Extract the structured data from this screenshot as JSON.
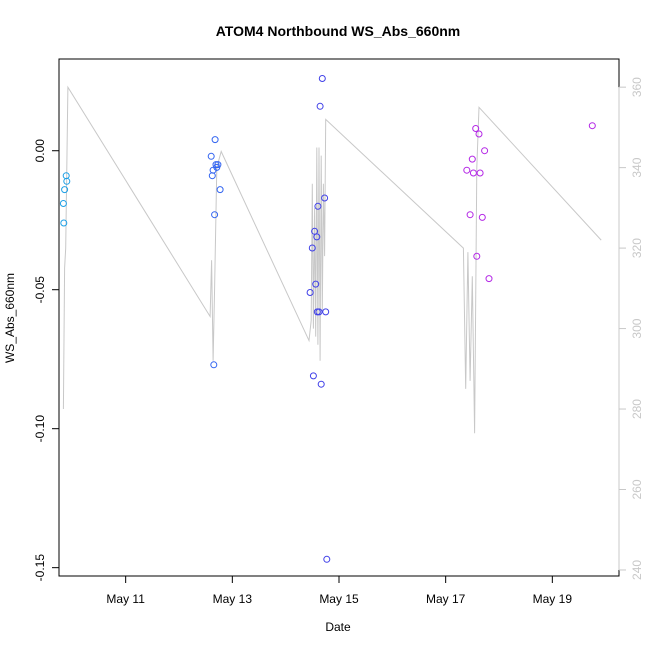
{
  "chart_data": {
    "type": "scatter",
    "title": "ATOM4 Northbound WS_Abs_660nm",
    "xlabel": "Date",
    "ylabel": "WS_Abs_660nm",
    "x_ticks": [
      "May 11",
      "May 13",
      "May 15",
      "May 17",
      "May 19"
    ],
    "y_ticks": [
      "0.00",
      "-0.05",
      "-0.10",
      "-0.15"
    ],
    "y2_ticks": [
      "240",
      "260",
      "280",
      "300",
      "320",
      "340",
      "360"
    ],
    "xlim": [
      "2019-05-09 18:00",
      "2019-05-20 06:00"
    ],
    "ylim": [
      -0.153,
      0.033
    ],
    "y2lim": [
      238.5,
      367
    ],
    "grid": false,
    "legend": "none",
    "colors": {
      "line": "#c8c8c8",
      "axis": "#000000",
      "right_axis": "#c8c8c8"
    },
    "series": [
      {
        "type": "scatter",
        "points": [
          {
            "x": "2019-05-09 20:00",
            "y": -0.019,
            "color": "#1ea0e6"
          },
          {
            "x": "2019-05-09 20:10",
            "y": -0.026,
            "color": "#1ea0e6"
          },
          {
            "x": "2019-05-09 20:30",
            "y": -0.014,
            "color": "#1ea0e6"
          },
          {
            "x": "2019-05-09 21:15",
            "y": -0.009,
            "color": "#1ea0e6"
          },
          {
            "x": "2019-05-09 21:30",
            "y": -0.011,
            "color": "#1ea0e6"
          },
          {
            "x": "2019-05-12 14:30",
            "y": -0.002,
            "color": "#3264f0"
          },
          {
            "x": "2019-05-12 15:00",
            "y": -0.009,
            "color": "#3264f0"
          },
          {
            "x": "2019-05-12 15:20",
            "y": -0.007,
            "color": "#3264f0"
          },
          {
            "x": "2019-05-12 15:40",
            "y": -0.077,
            "color": "#3264f0"
          },
          {
            "x": "2019-05-12 16:00",
            "y": -0.023,
            "color": "#3264f0"
          },
          {
            "x": "2019-05-12 16:15",
            "y": 0.004,
            "color": "#3264f0"
          },
          {
            "x": "2019-05-12 16:40",
            "y": -0.005,
            "color": "#3264f0"
          },
          {
            "x": "2019-05-12 17:00",
            "y": -0.006,
            "color": "#3264f0"
          },
          {
            "x": "2019-05-12 17:30",
            "y": -0.005,
            "color": "#3264f0"
          },
          {
            "x": "2019-05-12 18:30",
            "y": -0.014,
            "color": "#3264f0"
          },
          {
            "x": "2019-05-14 11:00",
            "y": -0.051,
            "color": "#4040e8"
          },
          {
            "x": "2019-05-14 12:00",
            "y": -0.035,
            "color": "#4040e8"
          },
          {
            "x": "2019-05-14 12:30",
            "y": -0.081,
            "color": "#4040e8"
          },
          {
            "x": "2019-05-14 13:00",
            "y": -0.029,
            "color": "#4040e8"
          },
          {
            "x": "2019-05-14 13:30",
            "y": -0.048,
            "color": "#4040e8"
          },
          {
            "x": "2019-05-14 14:00",
            "y": -0.031,
            "color": "#4040e8"
          },
          {
            "x": "2019-05-14 14:15",
            "y": -0.058,
            "color": "#4040e8"
          },
          {
            "x": "2019-05-14 14:30",
            "y": -0.02,
            "color": "#4040e8"
          },
          {
            "x": "2019-05-14 15:00",
            "y": -0.058,
            "color": "#4040e8"
          },
          {
            "x": "2019-05-14 15:30",
            "y": 0.016,
            "color": "#4040e8"
          },
          {
            "x": "2019-05-14 16:00",
            "y": -0.084,
            "color": "#4040e8"
          },
          {
            "x": "2019-05-14 16:30",
            "y": 0.026,
            "color": "#4040e8"
          },
          {
            "x": "2019-05-14 17:30",
            "y": -0.017,
            "color": "#4040e8"
          },
          {
            "x": "2019-05-14 18:00",
            "y": -0.058,
            "color": "#4040e8"
          },
          {
            "x": "2019-05-14 18:30",
            "y": -0.147,
            "color": "#4040e8"
          },
          {
            "x": "2019-05-17 09:30",
            "y": -0.007,
            "color": "#b428e6"
          },
          {
            "x": "2019-05-17 11:00",
            "y": -0.023,
            "color": "#b428e6"
          },
          {
            "x": "2019-05-17 12:00",
            "y": -0.003,
            "color": "#b428e6"
          },
          {
            "x": "2019-05-17 12:30",
            "y": -0.008,
            "color": "#b428e6"
          },
          {
            "x": "2019-05-17 13:30",
            "y": 0.008,
            "color": "#b428e6"
          },
          {
            "x": "2019-05-17 14:00",
            "y": -0.038,
            "color": "#b428e6"
          },
          {
            "x": "2019-05-17 15:00",
            "y": 0.006,
            "color": "#b428e6"
          },
          {
            "x": "2019-05-17 15:30",
            "y": -0.008,
            "color": "#b428e6"
          },
          {
            "x": "2019-05-17 16:30",
            "y": -0.024,
            "color": "#b428e6"
          },
          {
            "x": "2019-05-17 17:30",
            "y": 0.0,
            "color": "#b428e6"
          },
          {
            "x": "2019-05-17 19:30",
            "y": -0.046,
            "color": "#b428e6"
          },
          {
            "x": "2019-05-19 18:00",
            "y": 0.009,
            "color": "#b428e6"
          }
        ]
      },
      {
        "type": "line",
        "axis": "right",
        "points": [
          {
            "x": "2019-05-09 20:00",
            "y": 280
          },
          {
            "x": "2019-05-09 20:30",
            "y": 315
          },
          {
            "x": "2019-05-09 21:00",
            "y": 320
          },
          {
            "x": "2019-05-09 22:00",
            "y": 360
          },
          {
            "x": "2019-05-12 14:00",
            "y": 303
          },
          {
            "x": "2019-05-12 14:40",
            "y": 317
          },
          {
            "x": "2019-05-12 15:20",
            "y": 292
          },
          {
            "x": "2019-05-12 16:00",
            "y": 310
          },
          {
            "x": "2019-05-12 17:00",
            "y": 340
          },
          {
            "x": "2019-05-12 19:00",
            "y": 344
          },
          {
            "x": "2019-05-14 10:30",
            "y": 297
          },
          {
            "x": "2019-05-14 11:30",
            "y": 302
          },
          {
            "x": "2019-05-14 12:00",
            "y": 336
          },
          {
            "x": "2019-05-14 12:30",
            "y": 300
          },
          {
            "x": "2019-05-14 13:00",
            "y": 330
          },
          {
            "x": "2019-05-14 13:30",
            "y": 298
          },
          {
            "x": "2019-05-14 14:00",
            "y": 345
          },
          {
            "x": "2019-05-14 14:30",
            "y": 296
          },
          {
            "x": "2019-05-14 15:00",
            "y": 345
          },
          {
            "x": "2019-05-14 15:30",
            "y": 292
          },
          {
            "x": "2019-05-14 16:00",
            "y": 343
          },
          {
            "x": "2019-05-14 16:30",
            "y": 304
          },
          {
            "x": "2019-05-14 17:00",
            "y": 336
          },
          {
            "x": "2019-05-14 17:30",
            "y": 318
          },
          {
            "x": "2019-05-14 18:00",
            "y": 352
          },
          {
            "x": "2019-05-17 08:00",
            "y": 320
          },
          {
            "x": "2019-05-17 09:00",
            "y": 285
          },
          {
            "x": "2019-05-17 10:00",
            "y": 319
          },
          {
            "x": "2019-05-17 11:00",
            "y": 287
          },
          {
            "x": "2019-05-17 12:00",
            "y": 313
          },
          {
            "x": "2019-05-17 13:00",
            "y": 274
          },
          {
            "x": "2019-05-17 14:00",
            "y": 340
          },
          {
            "x": "2019-05-17 15:00",
            "y": 355
          },
          {
            "x": "2019-05-19 22:00",
            "y": 322
          }
        ]
      }
    ]
  }
}
